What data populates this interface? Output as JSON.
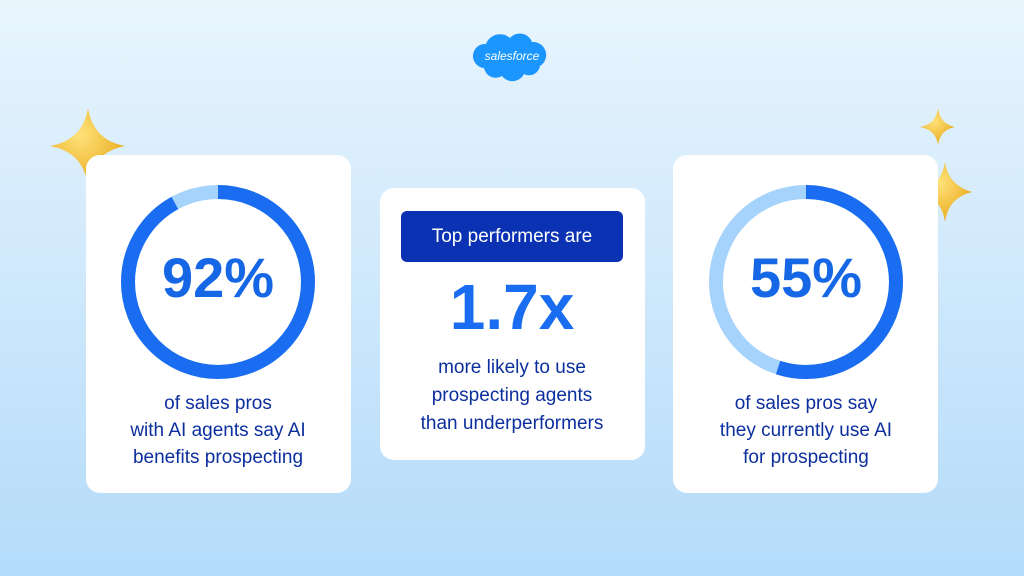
{
  "logo": "salesforce",
  "cards": [
    {
      "stat": {
        "value": 92,
        "label": "92%"
      },
      "lines": [
        "of sales pros",
        "with AI agents say AI",
        "benefits prospecting"
      ]
    },
    {
      "badge": "Top performers are",
      "stat": "1.7x",
      "lines": [
        "more likely to use",
        "prospecting agents",
        "than underperformers"
      ]
    },
    {
      "stat": {
        "value": 55,
        "label": "55%"
      },
      "lines": [
        "of sales pros say",
        "they currently use AI",
        "for prospecting"
      ]
    }
  ]
}
